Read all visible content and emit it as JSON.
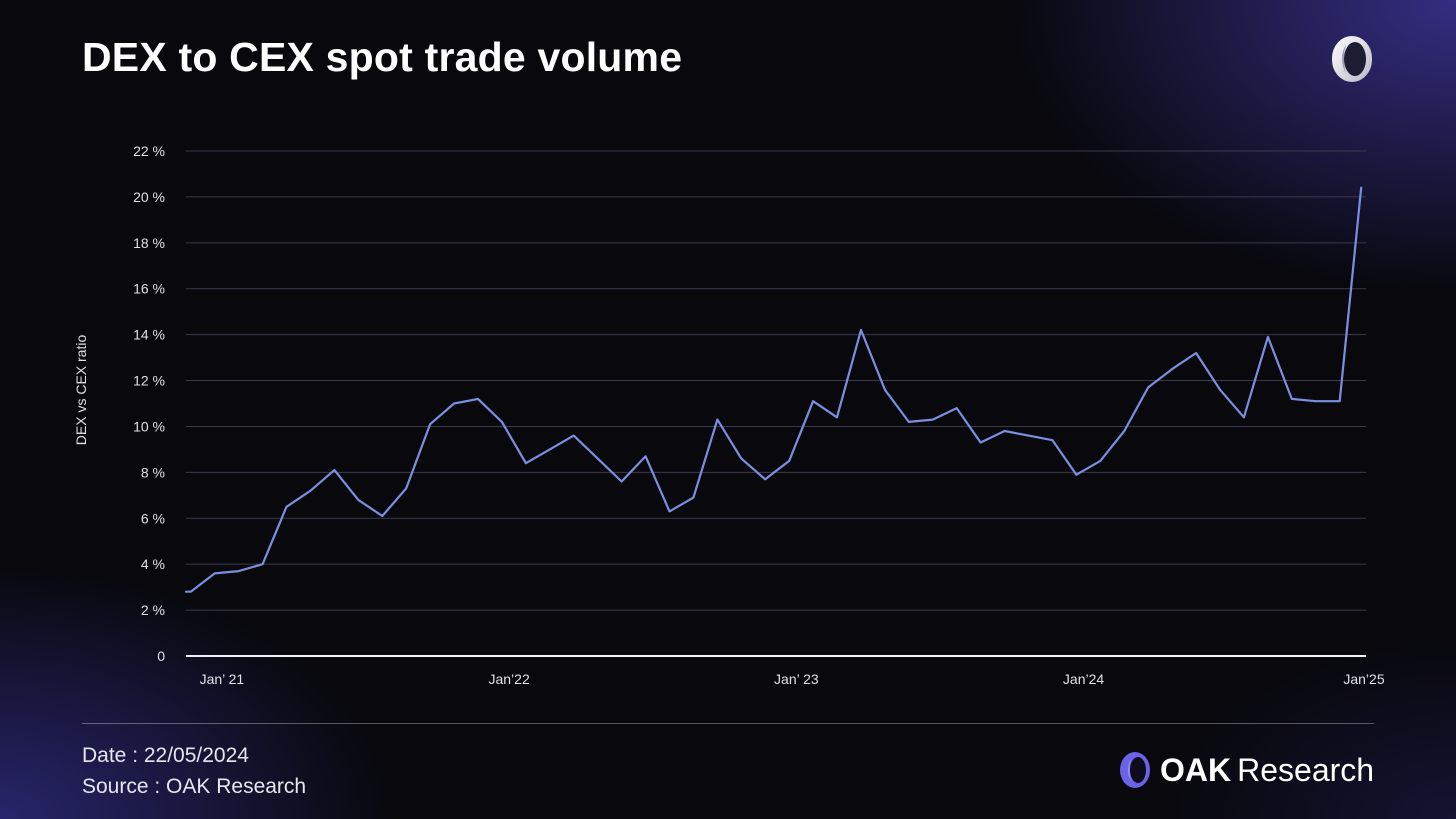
{
  "slide": {
    "title": "DEX to CEX spot trade volume"
  },
  "footer": {
    "date_line": "Date : 22/05/2024",
    "source_line": "Source : OAK Research",
    "brand_strong": "OAK",
    "brand_light": "Research"
  },
  "colors": {
    "line": "#7b8fe0",
    "grid": "#3a3a4e",
    "tick_text": "#e0e0e8",
    "brand_accent": "#6b63e6"
  },
  "chart_data": {
    "type": "line",
    "title": "DEX to CEX spot trade volume",
    "xlabel": "",
    "ylabel": "DEX vs CEX ratio",
    "ylim": [
      0,
      22
    ],
    "yticks": [
      0,
      2,
      4,
      6,
      8,
      10,
      12,
      14,
      16,
      18,
      20,
      22
    ],
    "ytick_labels": [
      "0",
      "2 %",
      "4 %",
      "6 %",
      "8 %",
      "10 %",
      "12 %",
      "14 %",
      "16 %",
      "18 %",
      "20 %",
      "22 %"
    ],
    "xlim": [
      -0.5,
      48.8
    ],
    "xticks": [
      {
        "label": "Jan’ 21",
        "x": 1
      },
      {
        "label": "Jan’22",
        "x": 13
      },
      {
        "label": "Jan’ 23",
        "x": 25
      },
      {
        "label": "Jan’24",
        "x": 37
      },
      {
        "label": "Jan’25",
        "x": 49
      }
    ],
    "grid": true,
    "series": [
      {
        "name": "DEX vs CEX ratio",
        "x": [
          -0.5,
          -0.3,
          0.7,
          1.7,
          2.7,
          3.7,
          4.7,
          5.7,
          6.7,
          7.7,
          8.7,
          9.7,
          10.7,
          11.7,
          12.7,
          13.7,
          14.7,
          15.7,
          16.7,
          17.7,
          18.7,
          19.7,
          20.7,
          21.7,
          22.7,
          23.7,
          24.7,
          25.7,
          26.7,
          27.7,
          28.7,
          29.7,
          30.7,
          31.7,
          32.7,
          33.7,
          34.7,
          35.7,
          36.7,
          37.7,
          38.7,
          39.7,
          40.7,
          41.7,
          42.7,
          43.7,
          44.7,
          45.7,
          46.7,
          47.7,
          48.6
        ],
        "values": [
          2.8,
          2.8,
          3.6,
          3.7,
          4.0,
          6.5,
          7.2,
          8.1,
          6.8,
          6.1,
          7.3,
          10.1,
          11.0,
          11.2,
          10.2,
          8.4,
          9.0,
          9.6,
          8.6,
          7.6,
          8.7,
          6.3,
          6.9,
          10.3,
          8.6,
          7.7,
          8.5,
          11.1,
          10.4,
          14.2,
          11.6,
          10.2,
          10.3,
          10.8,
          9.3,
          9.8,
          9.6,
          9.4,
          7.9,
          8.5,
          9.8,
          11.7,
          12.5,
          13.2,
          11.6,
          10.4,
          13.9,
          11.2,
          11.1,
          11.1,
          20.4
        ]
      }
    ]
  }
}
